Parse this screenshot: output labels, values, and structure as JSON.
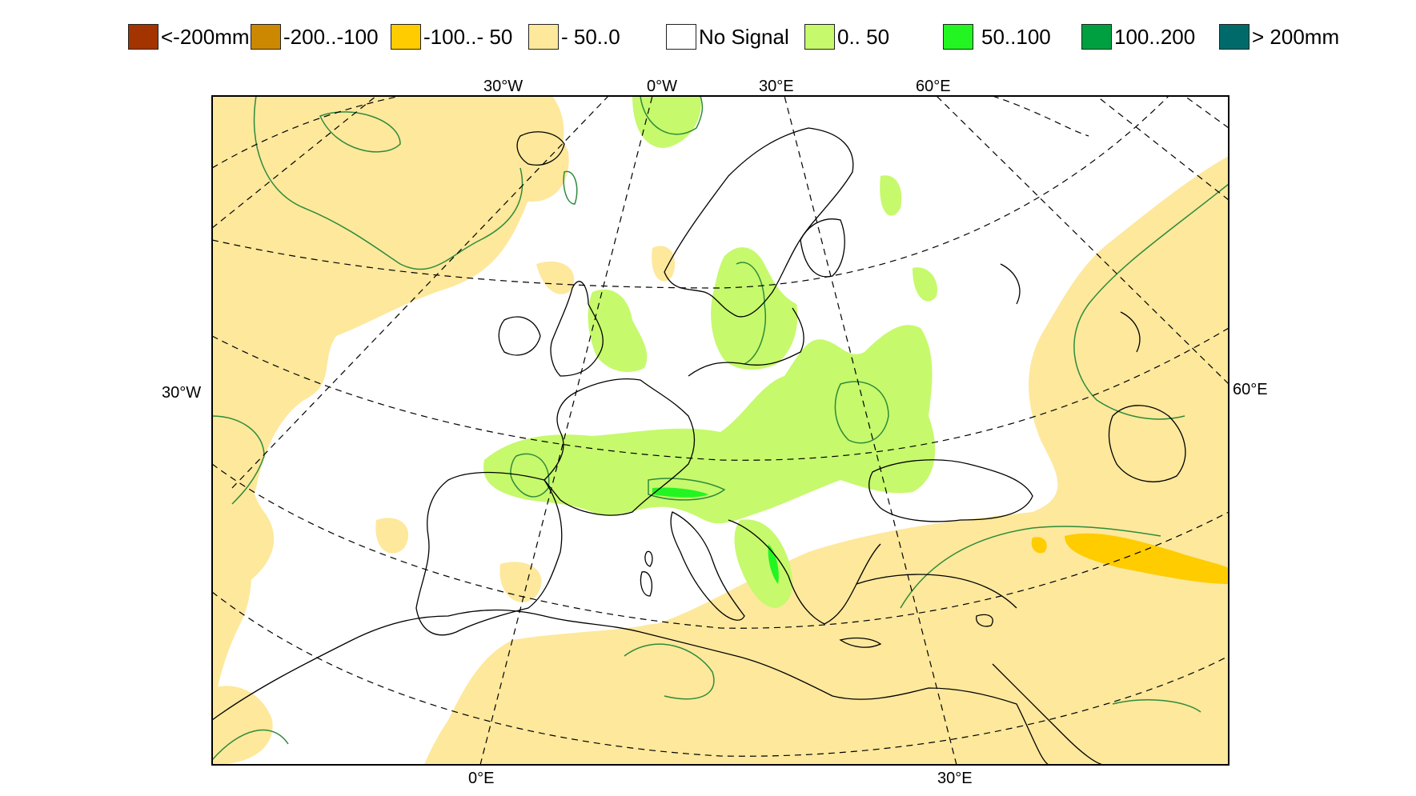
{
  "legend": {
    "items": [
      {
        "label": "<-200mm",
        "color": "#a33400"
      },
      {
        "label": "-200..-100",
        "color": "#cc8800"
      },
      {
        "label": "-100..- 50",
        "color": "#ffcc00"
      },
      {
        "label": "- 50..0",
        "color": "#fde89c"
      },
      {
        "label": "No Signal",
        "color": "#ffffff"
      },
      {
        "label": "0.. 50",
        "color": "#c6f96c"
      },
      {
        "label": "50..100",
        "color": "#22f522"
      },
      {
        "label": "100..200",
        "color": "#00a040"
      },
      {
        "label": "> 200mm",
        "color": "#006a6a"
      }
    ]
  },
  "map": {
    "graticule_labels": {
      "top": [
        "30°W",
        "0°W",
        "30°E",
        "60°E"
      ],
      "bottom": [
        "0°E",
        "30°E"
      ],
      "left": [
        "30°W"
      ],
      "right": [
        "60°E"
      ]
    },
    "colors": {
      "coastline": "#000000",
      "contour_line": "#2e8b3a",
      "graticule": "#000000",
      "frame": "#000000"
    }
  }
}
